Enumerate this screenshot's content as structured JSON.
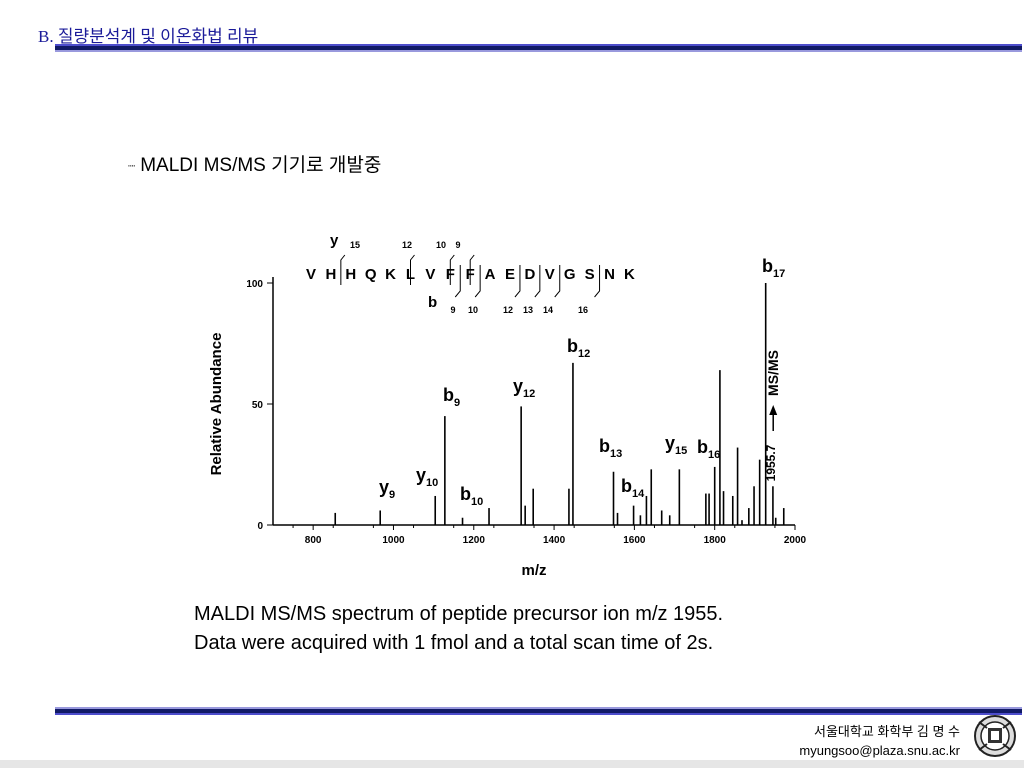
{
  "header": {
    "title": "B. 질량분석계 및 이온화법 리뷰"
  },
  "bullet": {
    "text": "MALDI  MS/MS 기기로 개발중"
  },
  "chart_data": {
    "type": "bar",
    "xlabel": "m/z",
    "ylabel": "Relative Abundance",
    "xlim": [
      700,
      2000
    ],
    "ylim": [
      0,
      100
    ],
    "x_ticks": [
      "800",
      "1000",
      "1200",
      "1400",
      "1600",
      "1800",
      "2000"
    ],
    "y_ticks": [
      "0",
      "50",
      "100"
    ],
    "precursor": {
      "mz": 1955.7,
      "label": "1955.7",
      "mode_label": "MS/MS"
    },
    "sequence": {
      "residues": [
        "V",
        "H",
        "H",
        "Q",
        "K",
        "L",
        "V",
        "F",
        "F",
        "A",
        "E",
        "D",
        "V",
        "G",
        "S",
        "N",
        "K"
      ],
      "y_label": "y",
      "b_label": "b",
      "y_numbers": [
        "15",
        "12",
        "10",
        "9"
      ],
      "b_numbers": [
        "9",
        "10",
        "12",
        "13",
        "14",
        "16"
      ]
    },
    "peaks": [
      {
        "mz": 855,
        "i": 5
      },
      {
        "mz": 967,
        "i": 6
      },
      {
        "mz": 1104,
        "i": 12
      },
      {
        "mz": 1128,
        "i": 45
      },
      {
        "mz": 1172,
        "i": 3
      },
      {
        "mz": 1238,
        "i": 7
      },
      {
        "mz": 1318,
        "i": 49
      },
      {
        "mz": 1328,
        "i": 8
      },
      {
        "mz": 1348,
        "i": 15
      },
      {
        "mz": 1437,
        "i": 15
      },
      {
        "mz": 1447,
        "i": 67
      },
      {
        "mz": 1548,
        "i": 22
      },
      {
        "mz": 1558,
        "i": 5
      },
      {
        "mz": 1598,
        "i": 8
      },
      {
        "mz": 1615,
        "i": 4
      },
      {
        "mz": 1630,
        "i": 12
      },
      {
        "mz": 1642,
        "i": 23
      },
      {
        "mz": 1668,
        "i": 6
      },
      {
        "mz": 1688,
        "i": 4
      },
      {
        "mz": 1712,
        "i": 23
      },
      {
        "mz": 1778,
        "i": 13
      },
      {
        "mz": 1786,
        "i": 13
      },
      {
        "mz": 1800,
        "i": 24
      },
      {
        "mz": 1813,
        "i": 64
      },
      {
        "mz": 1822,
        "i": 14
      },
      {
        "mz": 1845,
        "i": 12
      },
      {
        "mz": 1857,
        "i": 32
      },
      {
        "mz": 1868,
        "i": 2
      },
      {
        "mz": 1885,
        "i": 7
      },
      {
        "mz": 1898,
        "i": 16
      },
      {
        "mz": 1912,
        "i": 27
      },
      {
        "mz": 1927,
        "i": 100
      },
      {
        "mz": 1945,
        "i": 16
      },
      {
        "mz": 1952,
        "i": 3
      },
      {
        "mz": 1972,
        "i": 7
      }
    ],
    "annotations": [
      {
        "ion": "y",
        "sub": "9",
        "mz": 967
      },
      {
        "ion": "y",
        "sub": "10",
        "mz": 1104
      },
      {
        "ion": "b",
        "sub": "9",
        "mz": 1128
      },
      {
        "ion": "b",
        "sub": "10",
        "mz": 1238
      },
      {
        "ion": "y",
        "sub": "12",
        "mz": 1318
      },
      {
        "ion": "b",
        "sub": "12",
        "mz": 1447
      },
      {
        "ion": "b",
        "sub": "13",
        "mz": 1548
      },
      {
        "ion": "b",
        "sub": "14",
        "mz": 1598
      },
      {
        "ion": "y",
        "sub": "15",
        "mz": 1712
      },
      {
        "ion": "b",
        "sub": "16",
        "mz": 1800
      },
      {
        "ion": "b",
        "sub": "17",
        "mz": 1927
      }
    ]
  },
  "caption": {
    "line1": "MALDI MS/MS spectrum of peptide precursor ion m/z 1955.",
    "line2": "Data were acquired with 1 fmol and a total scan time of 2s."
  },
  "footer": {
    "affiliation": "서울대학교 화학부 김 명 수",
    "email": "myungsoo@plaza.snu.ac.kr"
  },
  "colors": {
    "title": "#1a1a99",
    "rule_dark": "#111a66",
    "rule_light": "#4d4dcc"
  }
}
